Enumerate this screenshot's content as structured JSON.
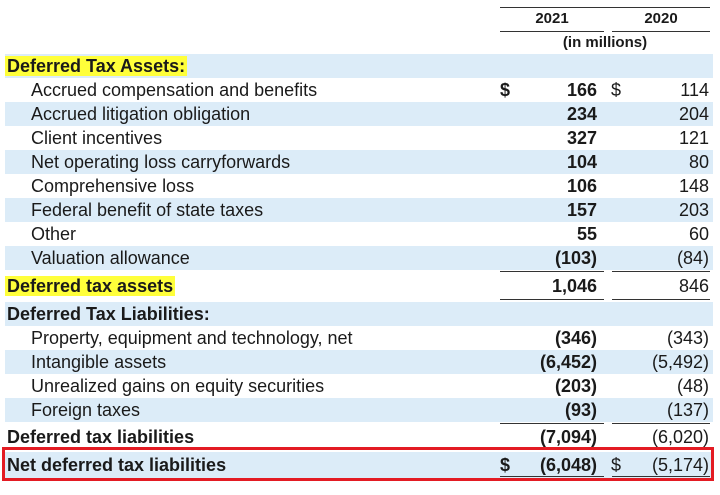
{
  "header": {
    "col_2021": "2021",
    "col_2020": "2020",
    "units": "(in millions)"
  },
  "assets_heading": "Deferred Tax Assets:",
  "assets": [
    {
      "label": "Accrued compensation and benefits",
      "v2021": "166",
      "v2020": "114",
      "dollar": "$"
    },
    {
      "label": "Accrued litigation obligation",
      "v2021": "234",
      "v2020": "204"
    },
    {
      "label": "Client incentives",
      "v2021": "327",
      "v2020": "121"
    },
    {
      "label": "Net operating loss carryforwards",
      "v2021": "104",
      "v2020": "80"
    },
    {
      "label": "Comprehensive loss",
      "v2021": "106",
      "v2020": "148"
    },
    {
      "label": "Federal benefit of state taxes",
      "v2021": "157",
      "v2020": "203"
    },
    {
      "label": "Other",
      "v2021": "55",
      "v2020": "60"
    },
    {
      "label": "Valuation allowance",
      "v2021": "(103)",
      "v2020": "(84)"
    }
  ],
  "assets_total": {
    "label": "Deferred tax assets",
    "v2021": "1,046",
    "v2020": "846"
  },
  "liabilities_heading": "Deferred Tax Liabilities:",
  "liabilities": [
    {
      "label": "Property, equipment and technology, net",
      "v2021": "(346)",
      "v2020": "(343)"
    },
    {
      "label": "Intangible assets",
      "v2021": "(6,452)",
      "v2020": "(5,492)"
    },
    {
      "label": "Unrealized gains on equity securities",
      "v2021": "(203)",
      "v2020": "(48)"
    },
    {
      "label": "Foreign taxes",
      "v2021": "(93)",
      "v2020": "(137)"
    }
  ],
  "liabilities_total": {
    "label": "Deferred tax liabilities",
    "v2021": "(7,094)",
    "v2020": "(6,020)"
  },
  "net": {
    "label": "Net deferred tax liabilities",
    "v2021": "(6,048)",
    "v2020": "(5,174)",
    "dollar": "$"
  },
  "colors": {
    "row_shade": "#dcecf8",
    "heading_highlight": "#ffff3a",
    "box_border": "#e31b23"
  }
}
